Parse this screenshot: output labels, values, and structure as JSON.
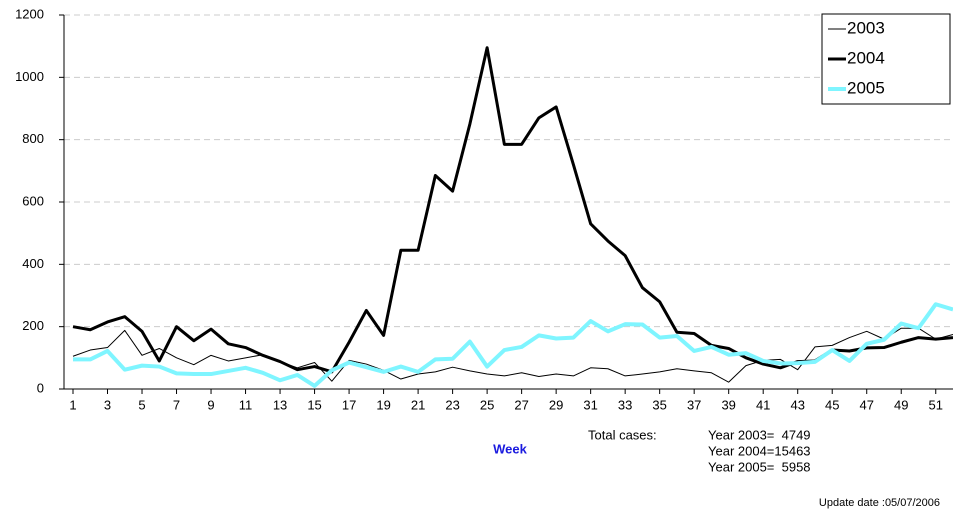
{
  "chart_data": {
    "type": "line",
    "x_label": "Week",
    "xlim": [
      1,
      52
    ],
    "xticks": [
      1,
      3,
      5,
      7,
      9,
      11,
      13,
      15,
      17,
      19,
      21,
      23,
      25,
      27,
      29,
      31,
      33,
      35,
      37,
      39,
      41,
      43,
      45,
      47,
      49,
      51
    ],
    "ylim": [
      0,
      1200
    ],
    "yticks": [
      0,
      200,
      400,
      600,
      800,
      1000,
      1200
    ],
    "grid": true,
    "legend": "top-right",
    "x": [
      1,
      2,
      3,
      4,
      5,
      6,
      7,
      8,
      9,
      10,
      11,
      12,
      13,
      14,
      15,
      16,
      17,
      18,
      19,
      20,
      21,
      22,
      23,
      24,
      25,
      26,
      27,
      28,
      29,
      30,
      31,
      32,
      33,
      34,
      35,
      36,
      37,
      38,
      39,
      40,
      41,
      42,
      43,
      44,
      45,
      46,
      47,
      48,
      49,
      50,
      51,
      52
    ],
    "series": [
      {
        "name": "2003",
        "color": "#000000",
        "width": 1,
        "values": [
          105,
          125,
          133,
          188,
          108,
          130,
          100,
          78,
          108,
          90,
          100,
          110,
          88,
          68,
          85,
          25,
          92,
          80,
          60,
          32,
          48,
          55,
          70,
          58,
          48,
          42,
          52,
          40,
          48,
          42,
          68,
          65,
          42,
          48,
          55,
          65,
          58,
          52,
          22,
          75,
          92,
          95,
          62,
          135,
          140,
          165,
          185,
          160,
          195,
          195,
          160,
          175
        ]
      },
      {
        "name": "2004",
        "color": "#000000",
        "width": 3,
        "values": [
          200,
          190,
          215,
          232,
          185,
          90,
          200,
          155,
          192,
          145,
          133,
          108,
          88,
          62,
          72,
          55,
          150,
          252,
          172,
          445,
          445,
          685,
          635,
          850,
          1095,
          785,
          785,
          870,
          905,
          720,
          530,
          475,
          428,
          325,
          280,
          182,
          178,
          140,
          130,
          100,
          80,
          68,
          88,
          90,
          125,
          122,
          132,
          133,
          150,
          165,
          160,
          165
        ]
      },
      {
        "name": "2005",
        "color": "#7ff5ff",
        "width": 4,
        "values": [
          95,
          95,
          122,
          62,
          75,
          72,
          50,
          48,
          48,
          58,
          68,
          52,
          28,
          45,
          10,
          60,
          85,
          70,
          55,
          72,
          55,
          95,
          97,
          152,
          72,
          125,
          135,
          172,
          162,
          165,
          218,
          185,
          208,
          207,
          165,
          170,
          122,
          135,
          110,
          115,
          90,
          82,
          83,
          87,
          125,
          90,
          145,
          158,
          210,
          195,
          272,
          255
        ]
      }
    ],
    "annotations": {
      "total_label": "Total cases:",
      "totals": [
        "Year 2003=  4749",
        "Year 2004=15463",
        "Year 2005=  5958"
      ],
      "update": "Update date :05/07/2006"
    }
  }
}
